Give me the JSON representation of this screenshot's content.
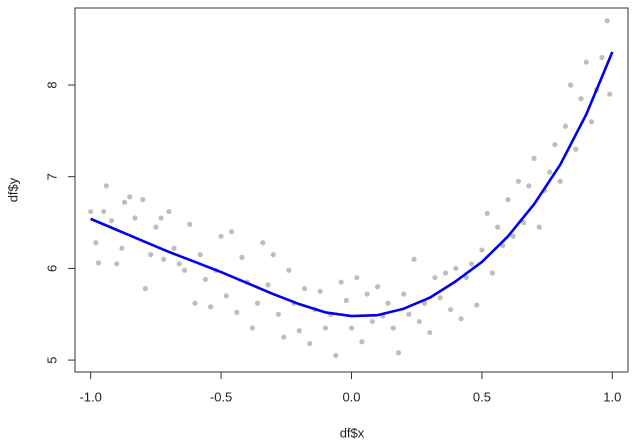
{
  "chart_data": {
    "type": "scatter",
    "xlabel": "df$x",
    "ylabel": "df$y",
    "xlim": [
      -1.06,
      1.06
    ],
    "ylim": [
      4.87,
      8.84
    ],
    "xticks": [
      {
        "value": -1,
        "label": "-1.0"
      },
      -0.5,
      {
        "value": 0,
        "label": "0.0"
      },
      0.5,
      {
        "value": 1,
        "label": "1.0"
      }
    ],
    "yticks": [
      5,
      6,
      7,
      8
    ],
    "color": "#bebebe",
    "x": [
      -1.0,
      -0.98,
      -0.97,
      -0.95,
      -0.94,
      -0.92,
      -0.9,
      -0.88,
      -0.87,
      -0.85,
      -0.83,
      -0.8,
      -0.79,
      -0.77,
      -0.75,
      -0.73,
      -0.72,
      -0.7,
      -0.68,
      -0.66,
      -0.64,
      -0.62,
      -0.6,
      -0.58,
      -0.56,
      -0.54,
      -0.52,
      -0.5,
      -0.48,
      -0.46,
      -0.44,
      -0.42,
      -0.4,
      -0.38,
      -0.36,
      -0.34,
      -0.32,
      -0.3,
      -0.28,
      -0.26,
      -0.24,
      -0.22,
      -0.2,
      -0.18,
      -0.16,
      -0.14,
      -0.12,
      -0.1,
      -0.08,
      -0.06,
      -0.04,
      -0.02,
      0.0,
      0.02,
      0.04,
      0.06,
      0.08,
      0.1,
      0.12,
      0.14,
      0.16,
      0.18,
      0.2,
      0.22,
      0.24,
      0.26,
      0.28,
      0.3,
      0.32,
      0.34,
      0.36,
      0.38,
      0.4,
      0.42,
      0.44,
      0.46,
      0.48,
      0.5,
      0.52,
      0.54,
      0.56,
      0.58,
      0.6,
      0.62,
      0.64,
      0.66,
      0.68,
      0.7,
      0.72,
      0.74,
      0.76,
      0.78,
      0.8,
      0.82,
      0.84,
      0.86,
      0.88,
      0.9,
      0.92,
      0.94,
      0.96,
      0.98,
      0.99
    ],
    "values": [
      6.62,
      6.28,
      6.06,
      6.62,
      6.9,
      6.52,
      6.05,
      6.22,
      6.72,
      6.78,
      6.55,
      6.75,
      5.78,
      6.15,
      6.45,
      6.55,
      6.1,
      6.62,
      6.22,
      6.05,
      5.98,
      6.48,
      5.62,
      6.15,
      5.88,
      5.58,
      5.98,
      6.35,
      5.7,
      6.4,
      5.52,
      6.12,
      5.85,
      5.35,
      5.62,
      6.28,
      5.82,
      6.15,
      5.5,
      5.25,
      5.98,
      5.62,
      5.32,
      5.78,
      5.18,
      5.55,
      5.75,
      5.35,
      5.5,
      5.05,
      5.85,
      5.65,
      5.35,
      5.9,
      5.2,
      5.72,
      5.42,
      5.8,
      5.48,
      5.62,
      5.35,
      5.08,
      5.72,
      5.5,
      6.1,
      5.42,
      5.62,
      5.3,
      5.9,
      5.68,
      5.95,
      5.55,
      6.0,
      5.45,
      5.9,
      6.05,
      5.6,
      6.2,
      6.6,
      5.95,
      6.45,
      6.25,
      6.75,
      6.35,
      6.95,
      6.5,
      6.9,
      7.2,
      6.45,
      6.85,
      7.05,
      7.35,
      6.95,
      7.55,
      8.0,
      7.3,
      7.85,
      8.25,
      7.6,
      7.95,
      8.3,
      8.7,
      7.9
    ],
    "fit": {
      "color": "#0000ee",
      "x": [
        -1.0,
        -0.9,
        -0.8,
        -0.7,
        -0.6,
        -0.5,
        -0.4,
        -0.3,
        -0.2,
        -0.1,
        0.0,
        0.1,
        0.2,
        0.3,
        0.4,
        0.5,
        0.6,
        0.7,
        0.8,
        0.9,
        1.0
      ],
      "values": [
        6.54,
        6.42,
        6.3,
        6.18,
        6.07,
        5.96,
        5.84,
        5.72,
        5.61,
        5.52,
        5.48,
        5.49,
        5.56,
        5.68,
        5.86,
        6.07,
        6.35,
        6.7,
        7.13,
        7.68,
        8.36
      ]
    }
  }
}
